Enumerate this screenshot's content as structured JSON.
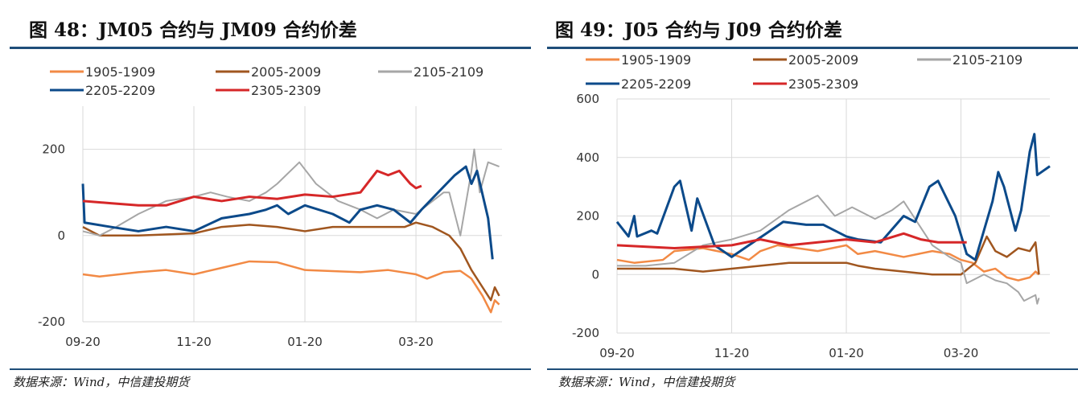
{
  "chart_data": [
    {
      "type": "line",
      "title": "图 48：JM05 合约与 JM09 合约价差",
      "source": "数据来源：Wind，中信建投期货",
      "x_unit": "months since 09-20",
      "xticks": [
        "09-20",
        "11-20",
        "01-20",
        "03-20"
      ],
      "xtick_pos": [
        0,
        2,
        4,
        6
      ],
      "xlim": [
        0,
        7.55
      ],
      "ylim": [
        -200,
        300
      ],
      "yticks": [
        -200,
        0,
        200
      ],
      "series": [
        {
          "name": "1905-1909",
          "color": "#f28a45",
          "points": [
            [
              0,
              -90
            ],
            [
              0.3,
              -95
            ],
            [
              1,
              -85
            ],
            [
              1.5,
              -80
            ],
            [
              2,
              -90
            ],
            [
              2.5,
              -75
            ],
            [
              3,
              -60
            ],
            [
              3.5,
              -62
            ],
            [
              4,
              -80
            ],
            [
              5,
              -85
            ],
            [
              5.5,
              -80
            ],
            [
              6,
              -90
            ],
            [
              6.2,
              -100
            ],
            [
              6.5,
              -85
            ],
            [
              6.8,
              -82
            ],
            [
              7.0,
              -100
            ],
            [
              7.2,
              -140
            ],
            [
              7.35,
              -178
            ],
            [
              7.42,
              -150
            ],
            [
              7.5,
              -160
            ]
          ]
        },
        {
          "name": "2005-2009",
          "color": "#a0561f",
          "points": [
            [
              0,
              20
            ],
            [
              0.3,
              0
            ],
            [
              1,
              0
            ],
            [
              2,
              5
            ],
            [
              2.5,
              20
            ],
            [
              3,
              25
            ],
            [
              3.5,
              20
            ],
            [
              4,
              10
            ],
            [
              4.5,
              20
            ],
            [
              5,
              20
            ],
            [
              5.5,
              20
            ],
            [
              5.8,
              20
            ],
            [
              6,
              30
            ],
            [
              6.3,
              20
            ],
            [
              6.6,
              0
            ],
            [
              6.8,
              -30
            ],
            [
              7.0,
              -80
            ],
            [
              7.2,
              -120
            ],
            [
              7.35,
              -150
            ],
            [
              7.42,
              -120
            ],
            [
              7.5,
              -140
            ]
          ]
        },
        {
          "name": "2105-2109",
          "color": "#a6a6a6",
          "points": [
            [
              0,
              10
            ],
            [
              0.3,
              0
            ],
            [
              0.6,
              20
            ],
            [
              1,
              50
            ],
            [
              1.5,
              80
            ],
            [
              2,
              90
            ],
            [
              2.3,
              100
            ],
            [
              2.6,
              90
            ],
            [
              3,
              80
            ],
            [
              3.3,
              100
            ],
            [
              3.5,
              120
            ],
            [
              3.9,
              170
            ],
            [
              4.2,
              120
            ],
            [
              4.4,
              100
            ],
            [
              4.6,
              80
            ],
            [
              5,
              60
            ],
            [
              5.3,
              40
            ],
            [
              5.6,
              60
            ],
            [
              6,
              50
            ],
            [
              6.3,
              80
            ],
            [
              6.5,
              100
            ],
            [
              6.6,
              100
            ],
            [
              6.8,
              0
            ],
            [
              7.0,
              150
            ],
            [
              7.05,
              200
            ],
            [
              7.15,
              100
            ],
            [
              7.3,
              170
            ],
            [
              7.5,
              160
            ]
          ]
        },
        {
          "name": "2205-2209",
          "color": "#0c4a8a",
          "points": [
            [
              0,
              120
            ],
            [
              0.03,
              30
            ],
            [
              0.5,
              20
            ],
            [
              1,
              10
            ],
            [
              1.5,
              20
            ],
            [
              2,
              10
            ],
            [
              2.5,
              40
            ],
            [
              3,
              50
            ],
            [
              3.3,
              60
            ],
            [
              3.5,
              70
            ],
            [
              3.7,
              50
            ],
            [
              4,
              70
            ],
            [
              4.5,
              50
            ],
            [
              4.8,
              30
            ],
            [
              5,
              60
            ],
            [
              5.3,
              70
            ],
            [
              5.6,
              60
            ],
            [
              5.9,
              30
            ],
            [
              6.1,
              60
            ],
            [
              6.4,
              100
            ],
            [
              6.7,
              140
            ],
            [
              6.9,
              160
            ],
            [
              7.0,
              120
            ],
            [
              7.1,
              150
            ],
            [
              7.3,
              40
            ],
            [
              7.38,
              -55
            ]
          ]
        },
        {
          "name": "2305-2309",
          "color": "#d62728",
          "points": [
            [
              0,
              80
            ],
            [
              0.5,
              75
            ],
            [
              1,
              70
            ],
            [
              1.5,
              70
            ],
            [
              2,
              90
            ],
            [
              2.5,
              80
            ],
            [
              3,
              90
            ],
            [
              3.5,
              85
            ],
            [
              4,
              95
            ],
            [
              4.5,
              90
            ],
            [
              5,
              100
            ],
            [
              5.3,
              150
            ],
            [
              5.5,
              140
            ],
            [
              5.7,
              150
            ],
            [
              5.9,
              120
            ],
            [
              6.0,
              110
            ],
            [
              6.1,
              115
            ]
          ]
        }
      ]
    },
    {
      "type": "line",
      "title": "图 49：J05 合约与 J09 合约价差",
      "source": "数据来源：Wind，中信建投期货",
      "x_unit": "months since 09-20",
      "xticks": [
        "09-20",
        "11-20",
        "01-20",
        "03-20"
      ],
      "xtick_pos": [
        0,
        2,
        4,
        6
      ],
      "xlim": [
        0,
        7.55
      ],
      "ylim": [
        -200,
        600
      ],
      "yticks": [
        -200,
        0,
        200,
        400,
        600
      ],
      "series": [
        {
          "name": "1905-1909",
          "color": "#f28a45",
          "points": [
            [
              0,
              50
            ],
            [
              0.3,
              40
            ],
            [
              0.8,
              50
            ],
            [
              1,
              80
            ],
            [
              1.5,
              90
            ],
            [
              2,
              70
            ],
            [
              2.3,
              50
            ],
            [
              2.5,
              80
            ],
            [
              2.8,
              100
            ],
            [
              3.5,
              80
            ],
            [
              4.0,
              100
            ],
            [
              4.2,
              70
            ],
            [
              4.5,
              80
            ],
            [
              5,
              60
            ],
            [
              5.5,
              80
            ],
            [
              5.8,
              70
            ],
            [
              6,
              50
            ],
            [
              6.2,
              40
            ],
            [
              6.4,
              10
            ],
            [
              6.6,
              20
            ],
            [
              6.8,
              -10
            ],
            [
              7,
              -20
            ],
            [
              7.2,
              -10
            ],
            [
              7.3,
              10
            ],
            [
              7.36,
              0
            ]
          ]
        },
        {
          "name": "2005-2009",
          "color": "#a0561f",
          "points": [
            [
              0,
              20
            ],
            [
              1,
              20
            ],
            [
              1.5,
              10
            ],
            [
              2,
              20
            ],
            [
              2.5,
              30
            ],
            [
              3,
              40
            ],
            [
              4,
              40
            ],
            [
              4.2,
              30
            ],
            [
              4.5,
              20
            ],
            [
              5,
              10
            ],
            [
              5.5,
              0
            ],
            [
              6.0,
              0
            ],
            [
              6.25,
              40
            ],
            [
              6.45,
              130
            ],
            [
              6.6,
              80
            ],
            [
              6.8,
              60
            ],
            [
              7.0,
              90
            ],
            [
              7.2,
              80
            ],
            [
              7.3,
              110
            ],
            [
              7.36,
              0
            ]
          ]
        },
        {
          "name": "2105-2109",
          "color": "#a6a6a6",
          "points": [
            [
              0,
              30
            ],
            [
              0.5,
              30
            ],
            [
              1,
              40
            ],
            [
              1.5,
              100
            ],
            [
              2,
              120
            ],
            [
              2.5,
              150
            ],
            [
              3,
              220
            ],
            [
              3.5,
              270
            ],
            [
              3.8,
              200
            ],
            [
              4.1,
              230
            ],
            [
              4.5,
              190
            ],
            [
              4.8,
              220
            ],
            [
              5,
              250
            ],
            [
              5.2,
              190
            ],
            [
              5.5,
              100
            ],
            [
              5.8,
              60
            ],
            [
              6,
              40
            ],
            [
              6.1,
              -30
            ],
            [
              6.4,
              0
            ],
            [
              6.6,
              -20
            ],
            [
              6.8,
              -30
            ],
            [
              7,
              -60
            ],
            [
              7.1,
              -90
            ],
            [
              7.3,
              -70
            ],
            [
              7.33,
              -100
            ],
            [
              7.36,
              -80
            ]
          ]
        },
        {
          "name": "2205-2209",
          "color": "#0c4a8a",
          "points": [
            [
              0,
              180
            ],
            [
              0.2,
              130
            ],
            [
              0.3,
              200
            ],
            [
              0.35,
              130
            ],
            [
              0.6,
              150
            ],
            [
              0.7,
              140
            ],
            [
              1.0,
              300
            ],
            [
              1.1,
              320
            ],
            [
              1.3,
              150
            ],
            [
              1.4,
              260
            ],
            [
              1.7,
              100
            ],
            [
              2,
              60
            ],
            [
              2.3,
              100
            ],
            [
              2.6,
              140
            ],
            [
              2.9,
              180
            ],
            [
              3.3,
              170
            ],
            [
              3.6,
              170
            ],
            [
              4,
              130
            ],
            [
              4.2,
              120
            ],
            [
              4.6,
              110
            ],
            [
              5,
              200
            ],
            [
              5.2,
              180
            ],
            [
              5.45,
              300
            ],
            [
              5.6,
              320
            ],
            [
              5.9,
              200
            ],
            [
              6.1,
              70
            ],
            [
              6.25,
              50
            ],
            [
              6.4,
              150
            ],
            [
              6.55,
              250
            ],
            [
              6.65,
              350
            ],
            [
              6.75,
              300
            ],
            [
              6.95,
              150
            ],
            [
              7.05,
              220
            ],
            [
              7.2,
              420
            ],
            [
              7.28,
              480
            ],
            [
              7.33,
              340
            ],
            [
              7.55,
              370
            ]
          ]
        },
        {
          "name": "2305-2309",
          "color": "#d62728",
          "points": [
            [
              0,
              100
            ],
            [
              1,
              90
            ],
            [
              2,
              100
            ],
            [
              2.5,
              120
            ],
            [
              3,
              100
            ],
            [
              3.5,
              110
            ],
            [
              4,
              120
            ],
            [
              4.5,
              110
            ],
            [
              5,
              140
            ],
            [
              5.3,
              120
            ],
            [
              5.6,
              110
            ],
            [
              5.9,
              110
            ],
            [
              6.1,
              110
            ]
          ]
        }
      ]
    }
  ]
}
